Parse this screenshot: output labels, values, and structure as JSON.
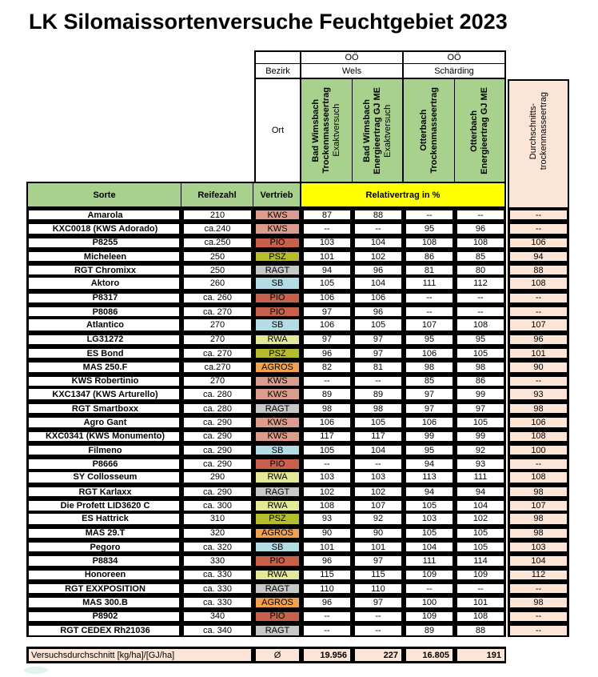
{
  "title": "LK Silomaissortenversuche Feuchtgebiet 2023",
  "header": {
    "regions": [
      "OÖ",
      "OÖ"
    ],
    "bezirk_label": "Bezirk",
    "districts": [
      "Wels",
      "Schärding"
    ],
    "ort_label": "Ort",
    "site_columns": [
      {
        "lines": [
          {
            "text": "Bad Wimsbach",
            "bold": true
          },
          {
            "text": "Trockenmasseertrag",
            "bold": true
          },
          {
            "text": "Exaktversuch",
            "bold": false
          }
        ]
      },
      {
        "lines": [
          {
            "text": "Bad Wimsbach",
            "bold": true
          },
          {
            "text": "Energieertrag GJ ME",
            "bold": true
          },
          {
            "text": "Exaktversuch",
            "bold": false
          }
        ]
      },
      {
        "lines": [
          {
            "text": "Otterbach",
            "bold": true
          },
          {
            "text": "Trockenmasseertrag",
            "bold": true
          }
        ]
      },
      {
        "lines": [
          {
            "text": "Otterbach",
            "bold": true
          },
          {
            "text": "Energieertrag GJ ME",
            "bold": true
          }
        ]
      }
    ],
    "avg_column": {
      "line1": "Durchschnitts-",
      "line2": "trockenmasseertrag"
    }
  },
  "column_headers": {
    "sorte": "Sorte",
    "reifezahl": "Reifezahl",
    "vertrieb": "Vertrieb",
    "relativertrag": "Relativertrag in %"
  },
  "vendor_colors": {
    "KWS": "#DB9D8E",
    "PIO": "#C8614B",
    "PSZ": "#B5BD2E",
    "RAGT": "#C8C8C8",
    "SB": "#B3DCE4",
    "RWA": "#E3E998",
    "AGROS": "#F0A24F"
  },
  "colors": {
    "header_green": "#A9D18E",
    "relativ_yellow": "#FFFF00",
    "salmon": "#FBE5D6",
    "border": "#000000"
  },
  "rows": [
    {
      "sorte": "Amarola",
      "reifezahl": "210",
      "vertrieb": "KWS",
      "values": [
        "87",
        "88",
        "--",
        "--"
      ],
      "avg": "--",
      "group_start": false
    },
    {
      "sorte": "KXC0018 (KWS Adorado)",
      "reifezahl": "ca.240",
      "vertrieb": "KWS",
      "values": [
        "--",
        "--",
        "95",
        "96"
      ],
      "avg": "--",
      "group_start": false
    },
    {
      "sorte": "P8255",
      "reifezahl": "ca.250",
      "vertrieb": "PIO",
      "values": [
        "103",
        "104",
        "108",
        "108"
      ],
      "avg": "106",
      "group_start": false
    },
    {
      "sorte": "Micheleen",
      "reifezahl": "250",
      "vertrieb": "PSZ",
      "values": [
        "101",
        "102",
        "86",
        "85"
      ],
      "avg": "94",
      "group_start": false
    },
    {
      "sorte": "RGT Chromixx",
      "reifezahl": "250",
      "vertrieb": "RAGT",
      "values": [
        "94",
        "96",
        "81",
        "80"
      ],
      "avg": "88",
      "group_start": false
    },
    {
      "sorte": "Aktoro",
      "reifezahl": "260",
      "vertrieb": "SB",
      "values": [
        "105",
        "104",
        "111",
        "112"
      ],
      "avg": "108",
      "group_start": true
    },
    {
      "sorte": "P8317",
      "reifezahl": "ca. 260",
      "vertrieb": "PIO",
      "values": [
        "106",
        "106",
        "--",
        "--"
      ],
      "avg": "--",
      "group_start": false
    },
    {
      "sorte": "P8086",
      "reifezahl": "ca. 270",
      "vertrieb": "PIO",
      "values": [
        "97",
        "96",
        "--",
        "--"
      ],
      "avg": "--",
      "group_start": false
    },
    {
      "sorte": "Atlantico",
      "reifezahl": "270",
      "vertrieb": "SB",
      "values": [
        "106",
        "105",
        "107",
        "108"
      ],
      "avg": "107",
      "group_start": true
    },
    {
      "sorte": "LG31272",
      "reifezahl": "270",
      "vertrieb": "RWA",
      "values": [
        "97",
        "97",
        "95",
        "95"
      ],
      "avg": "96",
      "group_start": false
    },
    {
      "sorte": "ES Bond",
      "reifezahl": "ca. 270",
      "vertrieb": "PSZ",
      "values": [
        "96",
        "97",
        "106",
        "105"
      ],
      "avg": "101",
      "group_start": false
    },
    {
      "sorte": "MAS 250.F",
      "reifezahl": "ca.270",
      "vertrieb": "AGROS",
      "values": [
        "82",
        "81",
        "98",
        "98"
      ],
      "avg": "90",
      "group_start": false
    },
    {
      "sorte": "KWS Robertinio",
      "reifezahl": "270",
      "vertrieb": "KWS",
      "values": [
        "--",
        "--",
        "85",
        "86"
      ],
      "avg": "--",
      "group_start": false
    },
    {
      "sorte": "KXC1347 (KWS Arturello)",
      "reifezahl": "ca. 280",
      "vertrieb": "KWS",
      "values": [
        "89",
        "89",
        "97",
        "99"
      ],
      "avg": "93",
      "group_start": true
    },
    {
      "sorte": "RGT Smartboxx",
      "reifezahl": "ca. 280",
      "vertrieb": "RAGT",
      "values": [
        "98",
        "98",
        "97",
        "97"
      ],
      "avg": "98",
      "group_start": false
    },
    {
      "sorte": "Agro Gant",
      "reifezahl": "ca. 290",
      "vertrieb": "KWS",
      "values": [
        "106",
        "105",
        "106",
        "105"
      ],
      "avg": "106",
      "group_start": false
    },
    {
      "sorte": "KXC0341 (KWS Monumento)",
      "reifezahl": "ca. 290",
      "vertrieb": "KWS",
      "values": [
        "117",
        "117",
        "99",
        "99"
      ],
      "avg": "108",
      "group_start": false
    },
    {
      "sorte": "Filmeno",
      "reifezahl": "ca. 290",
      "vertrieb": "SB",
      "values": [
        "105",
        "104",
        "95",
        "92"
      ],
      "avg": "100",
      "group_start": false
    },
    {
      "sorte": "P8666",
      "reifezahl": "ca. 290",
      "vertrieb": "PIO",
      "values": [
        "--",
        "--",
        "94",
        "93"
      ],
      "avg": "--",
      "group_start": false
    },
    {
      "sorte": "SY Collosseum",
      "reifezahl": "290",
      "vertrieb": "RWA",
      "values": [
        "103",
        "103",
        "113",
        "111"
      ],
      "avg": "108",
      "group_start": true
    },
    {
      "sorte": "RGT Karlaxx",
      "reifezahl": "ca. 290",
      "vertrieb": "RAGT",
      "values": [
        "102",
        "102",
        "94",
        "94"
      ],
      "avg": "98",
      "group_start": false
    },
    {
      "sorte": "Die Profett LID3620 C",
      "reifezahl": "ca. 300",
      "vertrieb": "RWA",
      "values": [
        "108",
        "107",
        "105",
        "104"
      ],
      "avg": "107",
      "group_start": false
    },
    {
      "sorte": "ES Hattrick",
      "reifezahl": "310",
      "vertrieb": "PSZ",
      "values": [
        "93",
        "92",
        "103",
        "102"
      ],
      "avg": "98",
      "group_start": true
    },
    {
      "sorte": "MAS 29.T",
      "reifezahl": "320",
      "vertrieb": "AGROS",
      "values": [
        "90",
        "90",
        "105",
        "105"
      ],
      "avg": "98",
      "group_start": false
    },
    {
      "sorte": "Pegoro",
      "reifezahl": "ca. 320",
      "vertrieb": "SB",
      "values": [
        "101",
        "101",
        "104",
        "105"
      ],
      "avg": "103",
      "group_start": false
    },
    {
      "sorte": "P8834",
      "reifezahl": "330",
      "vertrieb": "PIO",
      "values": [
        "96",
        "97",
        "111",
        "114"
      ],
      "avg": "104",
      "group_start": false
    },
    {
      "sorte": "Honoreen",
      "reifezahl": "ca. 330",
      "vertrieb": "RWA",
      "values": [
        "115",
        "115",
        "109",
        "109"
      ],
      "avg": "112",
      "group_start": false
    },
    {
      "sorte": "RGT EXXPOSITION",
      "reifezahl": "ca. 330",
      "vertrieb": "RAGT",
      "values": [
        "110",
        "110",
        "--",
        "--"
      ],
      "avg": "--",
      "group_start": false
    },
    {
      "sorte": "MAS 300.B",
      "reifezahl": "ca. 330",
      "vertrieb": "AGROS",
      "values": [
        "96",
        "97",
        "100",
        "101"
      ],
      "avg": "98",
      "group_start": false
    },
    {
      "sorte": "P8902",
      "reifezahl": "340",
      "vertrieb": "PIO",
      "values": [
        "--",
        "--",
        "109",
        "108"
      ],
      "avg": "--",
      "group_start": false
    },
    {
      "sorte": "RGT CEDEX Rh21036",
      "reifezahl": "ca. 340",
      "vertrieb": "RAGT",
      "values": [
        "--",
        "--",
        "89",
        "88"
      ],
      "avg": "--",
      "group_start": false
    }
  ],
  "footer": {
    "label": "Versuchsdurchschnitt [kg/ha]/[GJ/ha]",
    "avg_symbol": "Ø",
    "values": [
      "19.956",
      "227",
      "16.805",
      "191"
    ]
  }
}
